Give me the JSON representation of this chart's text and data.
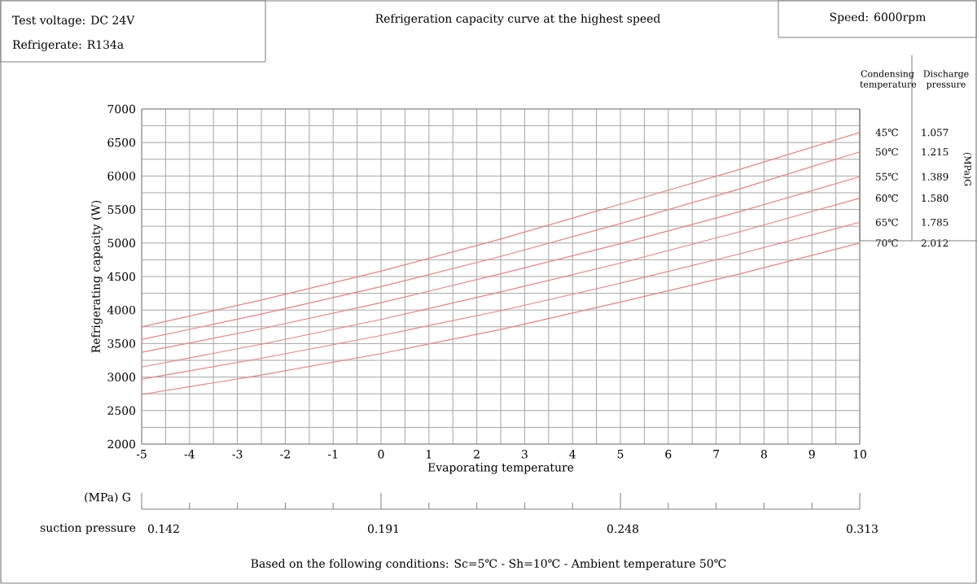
{
  "chart_data": {
    "type": "line",
    "title": "Refrigeration capacity curve at the highest speed",
    "xlabel": "Evaporating temperature",
    "ylabel": "Refrigerating capacity (W)",
    "x": [
      -5,
      -2.5,
      0,
      2.5,
      5,
      7.5,
      10
    ],
    "series": [
      {
        "name": "45℃",
        "color": "#f08080",
        "values": [
          3750,
          4150,
          4580,
          5060,
          5580,
          6100,
          6650
        ]
      },
      {
        "name": "50℃",
        "color": "#f08080",
        "values": [
          3560,
          3940,
          4350,
          4800,
          5290,
          5810,
          6360
        ]
      },
      {
        "name": "55℃",
        "color": "#f08080",
        "values": [
          3370,
          3720,
          4110,
          4540,
          4990,
          5470,
          5990
        ]
      },
      {
        "name": "60℃",
        "color": "#f08080",
        "values": [
          3150,
          3490,
          3860,
          4270,
          4700,
          5170,
          5670
        ]
      },
      {
        "name": "65℃",
        "color": "#f08080",
        "values": [
          2970,
          3280,
          3620,
          3990,
          4400,
          4840,
          5310
        ]
      },
      {
        "name": "70℃",
        "color": "#f08080",
        "values": [
          2740,
          3030,
          3350,
          3710,
          4120,
          4540,
          5000
        ]
      }
    ],
    "xlim": [
      -5,
      10
    ],
    "xticks": [
      -5,
      -4,
      -3,
      -2,
      -1,
      0,
      1,
      2,
      3,
      4,
      5,
      6,
      7,
      8,
      9,
      10
    ],
    "ylim": [
      2000,
      7000
    ],
    "yticks": [
      2000,
      2500,
      3000,
      3500,
      4000,
      4500,
      5000,
      5500,
      6000,
      6500,
      7000
    ],
    "grid": true,
    "line_style": "solid",
    "marker": "none",
    "annotations": [
      "Test voltage: DC 24V",
      "Refrigerate: R134a",
      "Speed: 6000rpm",
      "Condensing temperature",
      "Discharge pressure",
      "(MPa)G",
      "1.057",
      "1.215",
      "1.389",
      "1.580",
      "1.785",
      "2.012",
      "(MPa) G",
      "suction pressure",
      "0.142",
      "0.191",
      "0.248",
      "0.313",
      "Based on the following conditions: Sc=5℃ - Sh=10℃ - Ambient temperature 50℃"
    ]
  }
}
